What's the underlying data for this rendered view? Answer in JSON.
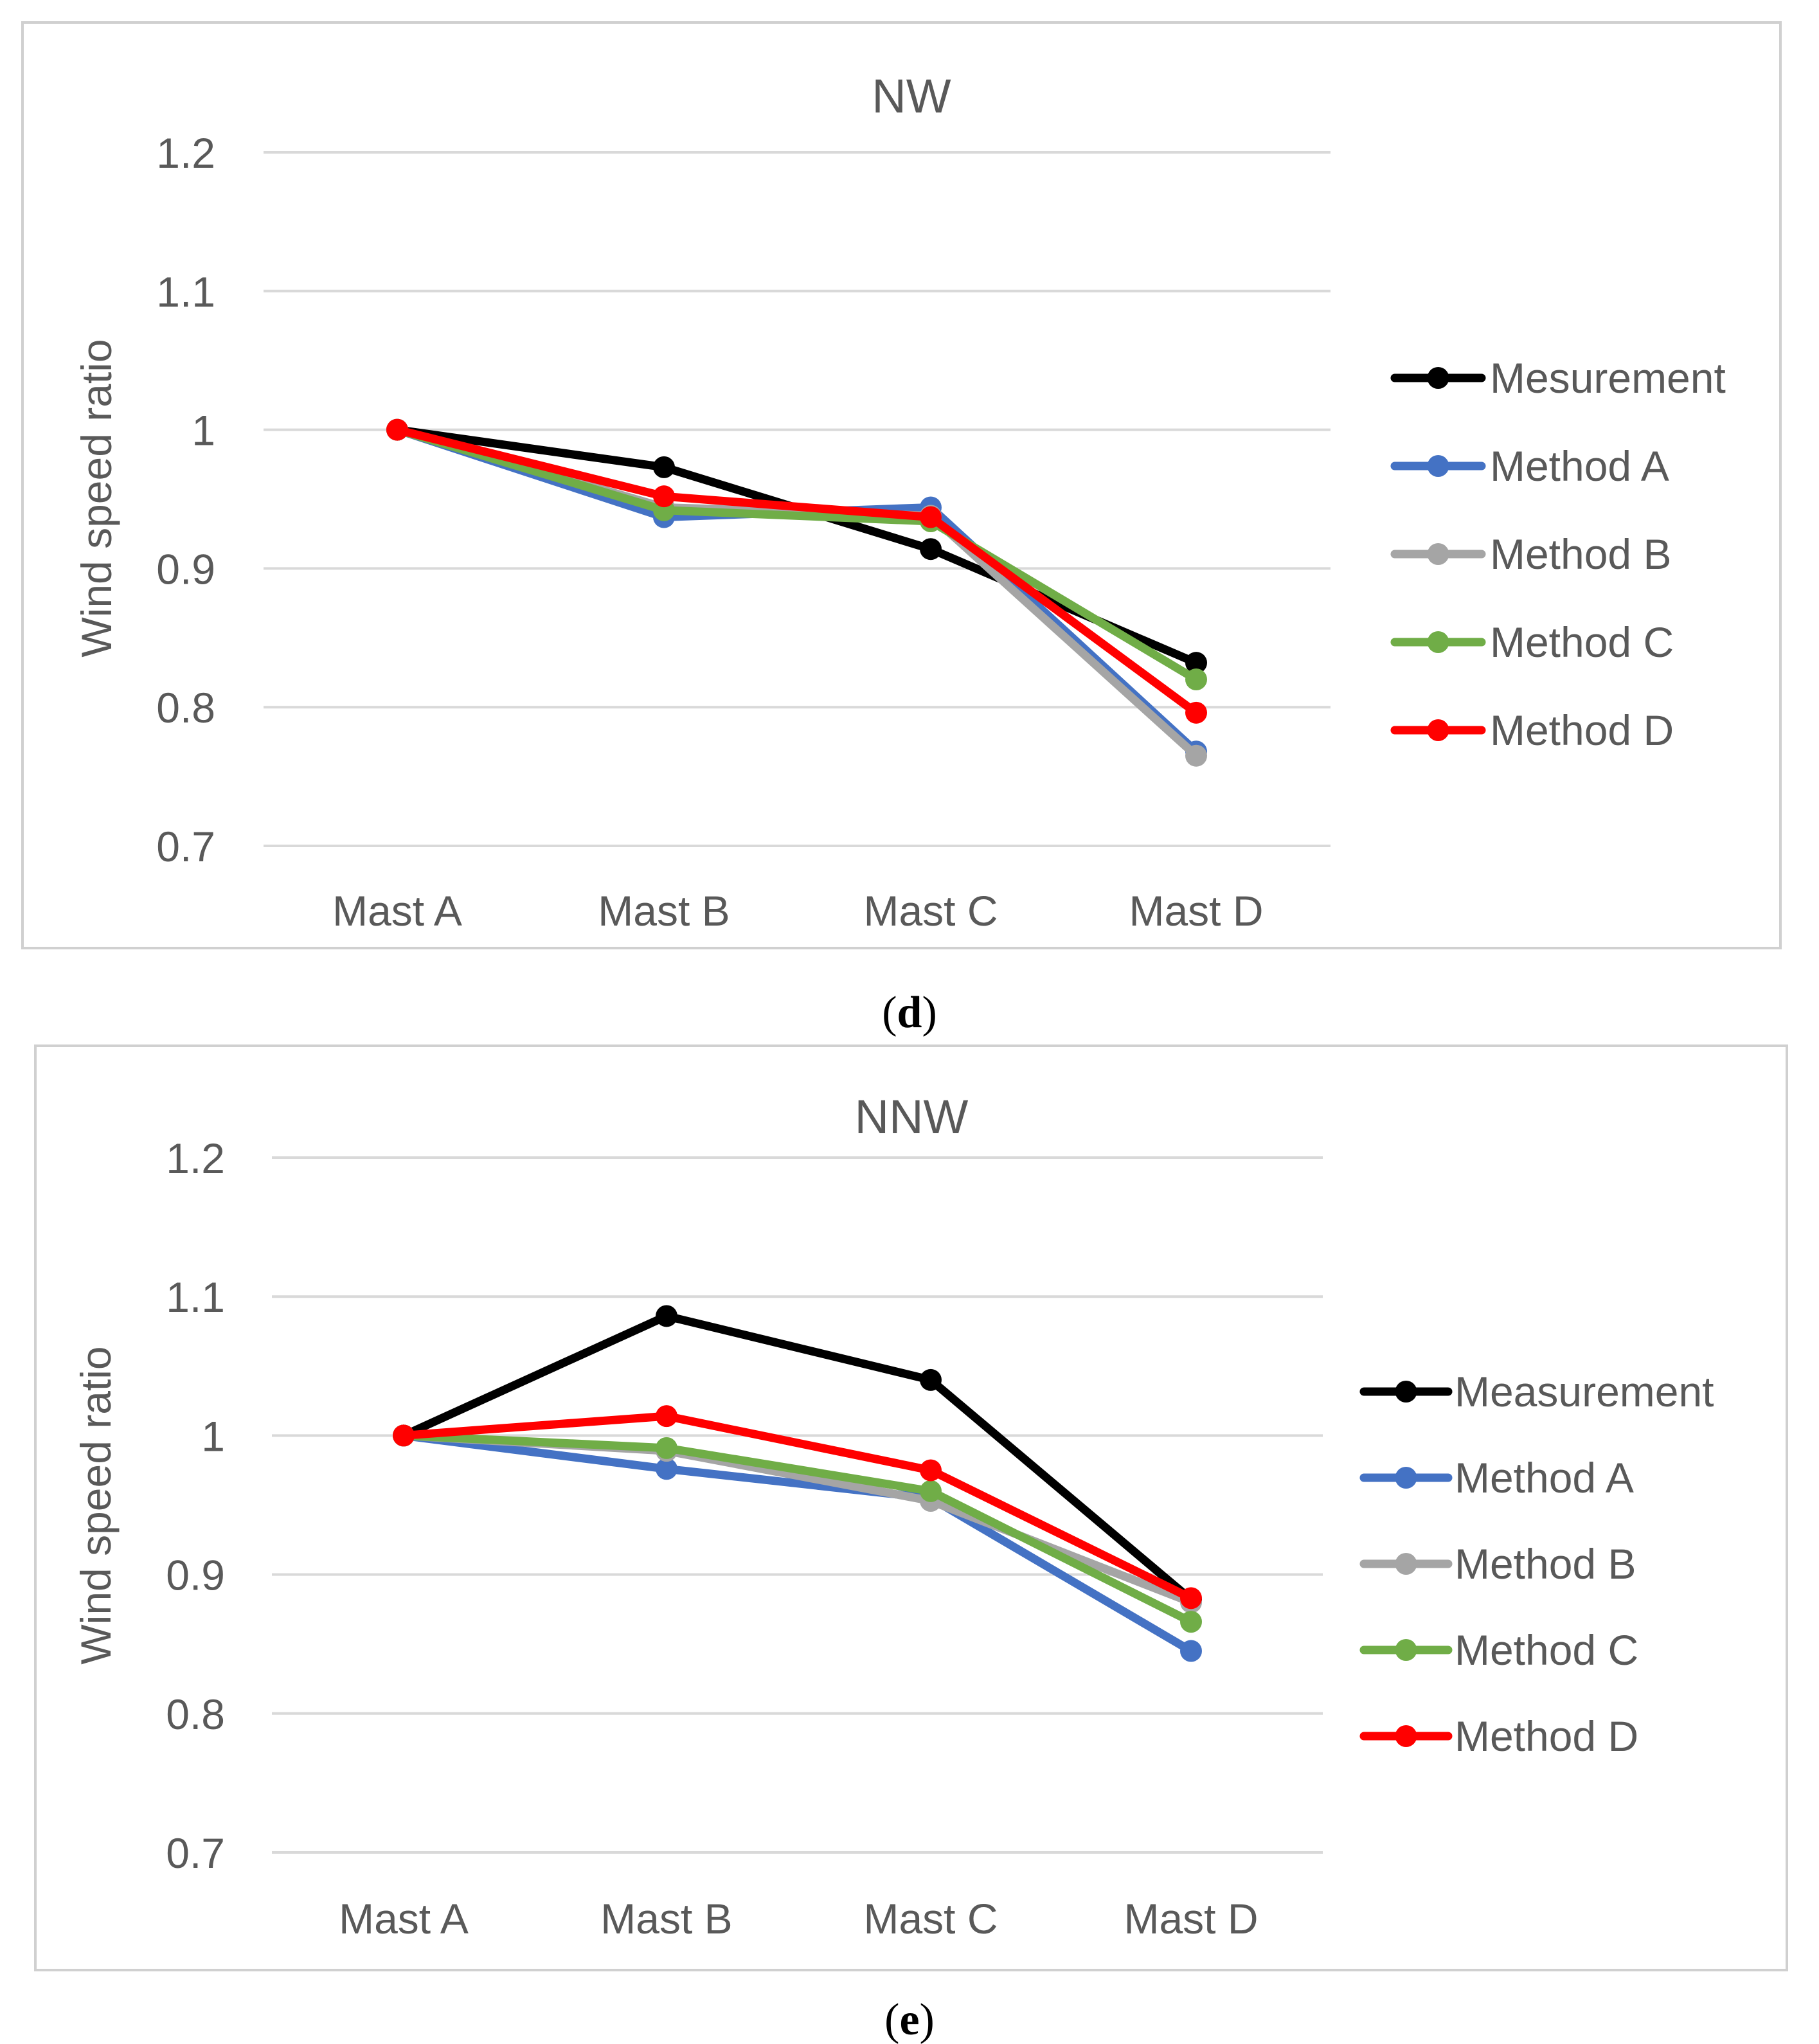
{
  "colors": {
    "grid": "#d9d9d9",
    "frame": "#d0d0d0",
    "text": "#595959",
    "caption": "#000000"
  },
  "chart_data": [
    {
      "type": "line",
      "title": "NW",
      "caption_open": "(",
      "caption_letter": "d",
      "caption_close": ")",
      "xlabel": "",
      "ylabel": "Wind speed ratio",
      "ylim": [
        0.7,
        1.2
      ],
      "yticks": [
        "1.2",
        "1.1",
        "1",
        "0.9",
        "0.8",
        "0.7"
      ],
      "ytick_values": [
        1.2,
        1.1,
        1.0,
        0.9,
        0.8,
        0.7
      ],
      "categories": [
        "Mast A",
        "Mast B",
        "Mast C",
        "Mast D"
      ],
      "grid": true,
      "legend_position": "right",
      "series": [
        {
          "name": "Mesurement",
          "color": "#000000",
          "values": [
            1.0,
            0.973,
            0.914,
            0.832
          ]
        },
        {
          "name": "Method A",
          "color": "#4472c4",
          "values": [
            1.0,
            0.937,
            0.944,
            0.768
          ]
        },
        {
          "name": "Method B",
          "color": "#a5a5a5",
          "values": [
            1.0,
            0.944,
            0.938,
            0.765
          ]
        },
        {
          "name": "Method C",
          "color": "#70ad47",
          "values": [
            1.0,
            0.942,
            0.934,
            0.82
          ]
        },
        {
          "name": "Method D",
          "color": "#ff0000",
          "values": [
            1.0,
            0.952,
            0.937,
            0.796
          ]
        }
      ]
    },
    {
      "type": "line",
      "title": "NNW",
      "caption_open": "(",
      "caption_letter": "e",
      "caption_close": ")",
      "xlabel": "",
      "ylabel": "Wind speed ratio",
      "ylim": [
        0.7,
        1.2
      ],
      "yticks": [
        "1.2",
        "1.1",
        "1",
        "0.9",
        "0.8",
        "0.7"
      ],
      "ytick_values": [
        1.2,
        1.1,
        1.0,
        0.9,
        0.8,
        0.7
      ],
      "categories": [
        "Mast A",
        "Mast B",
        "Mast C",
        "Mast D"
      ],
      "grid": true,
      "legend_position": "right",
      "series": [
        {
          "name": "Measurement",
          "color": "#000000",
          "values": [
            1.0,
            1.086,
            1.04,
            0.882
          ]
        },
        {
          "name": "Method A",
          "color": "#4472c4",
          "values": [
            1.0,
            0.976,
            0.955,
            0.845
          ]
        },
        {
          "name": "Method B",
          "color": "#a5a5a5",
          "values": [
            1.0,
            0.989,
            0.953,
            0.88
          ]
        },
        {
          "name": "Method C",
          "color": "#70ad47",
          "values": [
            1.0,
            0.991,
            0.96,
            0.866
          ]
        },
        {
          "name": "Method D",
          "color": "#ff0000",
          "values": [
            1.0,
            1.014,
            0.975,
            0.883
          ]
        }
      ]
    }
  ]
}
